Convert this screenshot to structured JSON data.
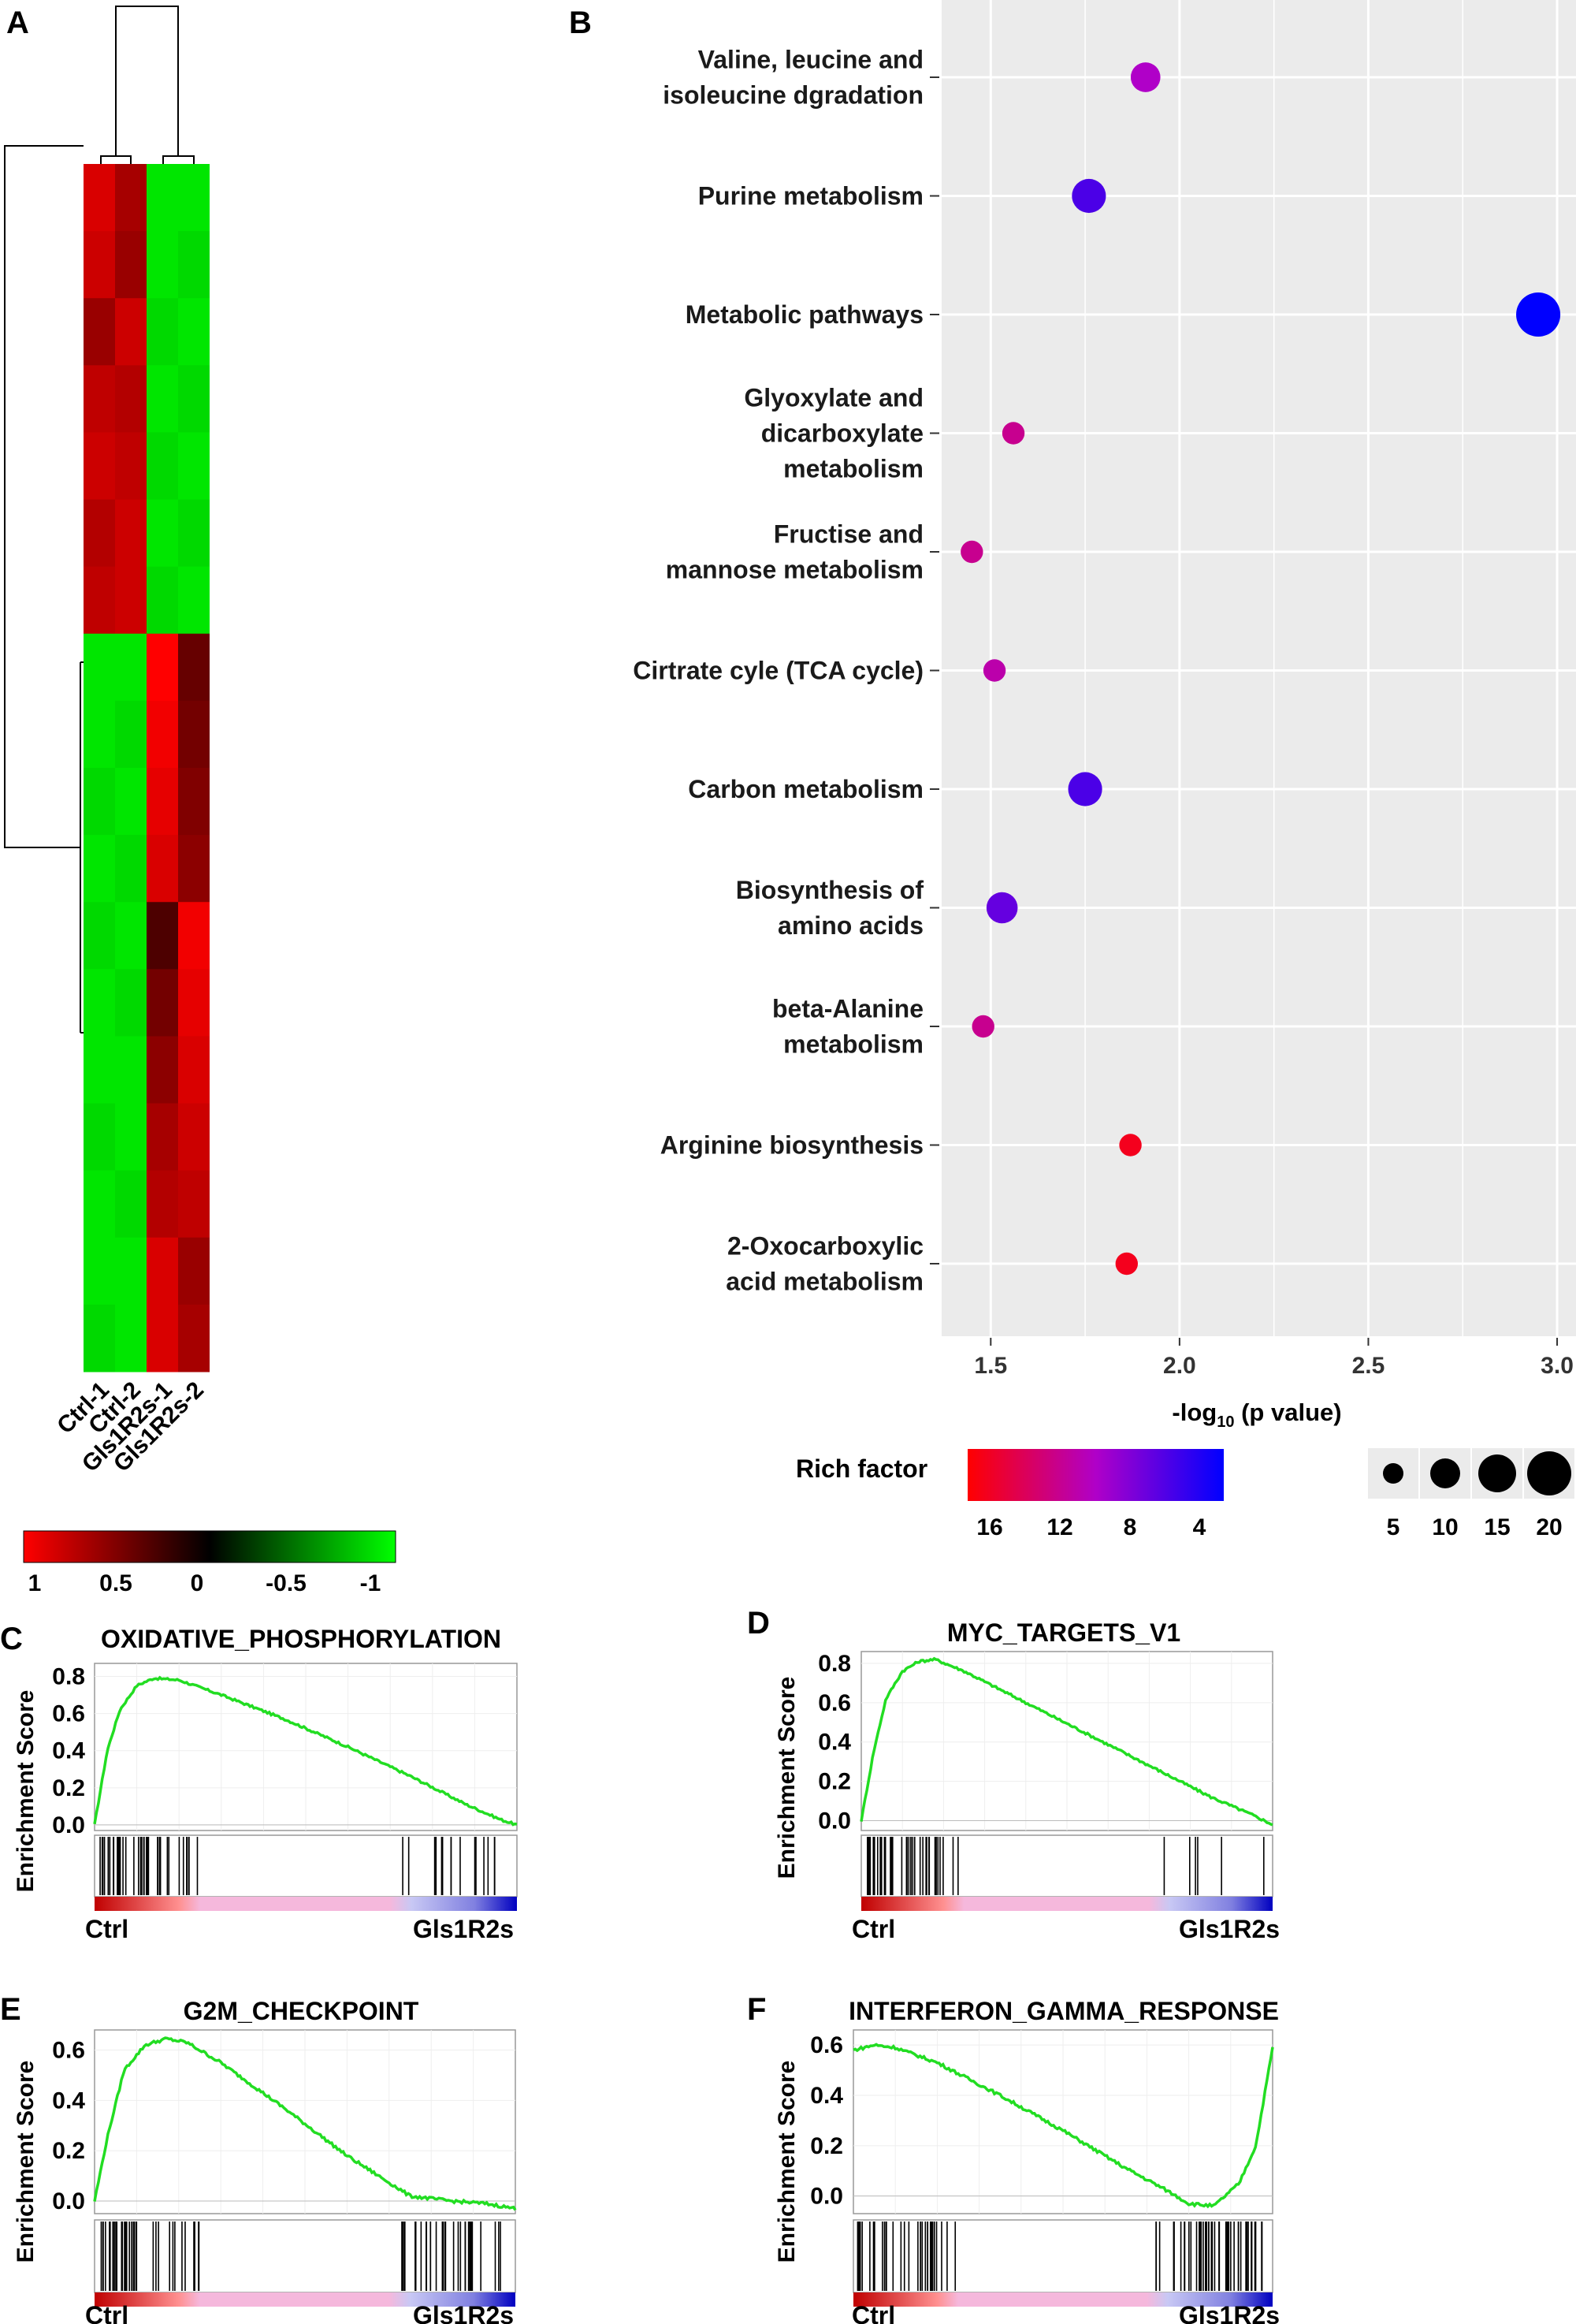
{
  "panel_labels": {
    "A": "A",
    "B": "B",
    "C": "C",
    "D": "D",
    "E": "E",
    "F": "F"
  },
  "heatmap": {
    "samples": [
      "Ctrl-1",
      "Ctrl-2",
      "Gls1R2s-1",
      "Gls1R2s-2"
    ],
    "colorbar_ticks": [
      "1",
      "0.5",
      "0",
      "-0.5",
      "-1"
    ],
    "colors": {
      "high": "#ff0000",
      "mid": "#000000",
      "low": "#00ff00"
    }
  },
  "bubble": {
    "legend_color_title": "Rich factor",
    "legend_color_ticks": [
      "16",
      "12",
      "8",
      "4"
    ],
    "legend_size_ticks": [
      "5",
      "10",
      "15",
      "20"
    ],
    "x_axis_title_parts": {
      "pre": "-log",
      "sub": "10",
      "post": " (p value)"
    },
    "x_ticks": [
      "1.5",
      "2.0",
      "2.5",
      "3.0"
    ]
  },
  "gsea_common": {
    "ylabel": "Enrichment Score",
    "left_label": "Ctrl",
    "right_label": "Gls1R2s"
  },
  "chart_data": [
    {
      "type": "heatmap",
      "title": "",
      "columns": [
        "Ctrl-1",
        "Ctrl-2",
        "Gls1R2s-1",
        "Gls1R2s-2"
      ],
      "scale": [
        -1,
        1
      ],
      "values": [
        [
          0.85,
          0.65,
          -0.9,
          -0.9
        ],
        [
          0.8,
          0.6,
          -0.9,
          -0.85
        ],
        [
          0.6,
          0.8,
          -0.85,
          -0.9
        ],
        [
          0.75,
          0.7,
          -0.9,
          -0.85
        ],
        [
          0.8,
          0.75,
          -0.85,
          -0.9
        ],
        [
          0.7,
          0.8,
          -0.9,
          -0.85
        ],
        [
          0.75,
          0.8,
          -0.85,
          -0.9
        ],
        [
          -0.9,
          -0.9,
          1.0,
          0.4
        ],
        [
          -0.9,
          -0.85,
          0.95,
          0.45
        ],
        [
          -0.85,
          -0.9,
          0.9,
          0.5
        ],
        [
          -0.9,
          -0.85,
          0.85,
          0.55
        ],
        [
          -0.85,
          -0.9,
          0.3,
          0.95
        ],
        [
          -0.9,
          -0.85,
          0.45,
          0.9
        ],
        [
          -0.9,
          -0.9,
          0.55,
          0.85
        ],
        [
          -0.85,
          -0.9,
          0.65,
          0.8
        ],
        [
          -0.9,
          -0.85,
          0.7,
          0.75
        ],
        [
          -0.9,
          -0.9,
          0.85,
          0.6
        ],
        [
          -0.85,
          -0.9,
          0.85,
          0.65
        ]
      ]
    },
    {
      "type": "scatter",
      "title": "",
      "xlabel": "-log10 (p value)",
      "ylabel": "",
      "xlim": [
        1.37,
        3.05
      ],
      "size_legend": "count",
      "color_legend": "Rich factor",
      "points": [
        {
          "pathway": "Valine, leucine and isoleucine dgradation",
          "x": 1.91,
          "size": 8,
          "rich_factor": 10
        },
        {
          "pathway": "Purine metabolism",
          "x": 1.76,
          "size": 11,
          "rich_factor": 6
        },
        {
          "pathway": "Metabolic pathways",
          "x": 2.95,
          "size": 20,
          "rich_factor": 3
        },
        {
          "pathway": "Glyoxylate and dicarboxylate metabolism",
          "x": 1.56,
          "size": 4,
          "rich_factor": 12
        },
        {
          "pathway": "Fructise and mannose metabolism",
          "x": 1.45,
          "size": 4,
          "rich_factor": 12
        },
        {
          "pathway": "Cirtrate cyle (TCA cycle)",
          "x": 1.51,
          "size": 4,
          "rich_factor": 11
        },
        {
          "pathway": "Carbon metabolism",
          "x": 1.75,
          "size": 11,
          "rich_factor": 6
        },
        {
          "pathway": "Biosynthesis of amino acids",
          "x": 1.53,
          "size": 9,
          "rich_factor": 7
        },
        {
          "pathway": "beta-Alanine metabolism",
          "x": 1.48,
          "size": 4,
          "rich_factor": 12
        },
        {
          "pathway": "Arginine biosynthesis",
          "x": 1.87,
          "size": 4,
          "rich_factor": 16
        },
        {
          "pathway": "2-Oxocarboxylic acid metabolism",
          "x": 1.86,
          "size": 4,
          "rich_factor": 16
        }
      ]
    },
    {
      "type": "line",
      "title": "OXIDATIVE_PHOSPHORYLATION",
      "ylabel": "Enrichment Score",
      "y_ticks": [
        0.0,
        0.2,
        0.4,
        0.6,
        0.8
      ],
      "ylim": [
        -0.03,
        0.87
      ],
      "x": [
        0,
        0.03,
        0.06,
        0.1,
        0.14,
        0.2,
        0.3,
        0.45,
        0.6,
        0.75,
        0.88,
        0.96,
        1.0
      ],
      "y": [
        0,
        0.4,
        0.62,
        0.75,
        0.79,
        0.78,
        0.7,
        0.57,
        0.42,
        0.26,
        0.11,
        0.03,
        0
      ],
      "hits_left": 40,
      "hits_right": 16
    },
    {
      "type": "line",
      "title": "MYC_TARGETS_V1",
      "ylabel": "Enrichment Score",
      "y_ticks": [
        0.0,
        0.2,
        0.4,
        0.6,
        0.8
      ],
      "ylim": [
        -0.05,
        0.86
      ],
      "x": [
        0,
        0.03,
        0.06,
        0.1,
        0.14,
        0.18,
        0.25,
        0.4,
        0.55,
        0.7,
        0.85,
        0.95,
        1.0
      ],
      "y": [
        0,
        0.35,
        0.62,
        0.76,
        0.81,
        0.82,
        0.76,
        0.6,
        0.44,
        0.28,
        0.12,
        0.03,
        -0.02
      ],
      "hits_left": 44,
      "hits_right": 6
    },
    {
      "type": "line",
      "title": "G2M_CHECKPOINT",
      "ylabel": "Enrichment Score",
      "y_ticks": [
        0.0,
        0.2,
        0.4,
        0.6
      ],
      "ylim": [
        -0.05,
        0.68
      ],
      "x": [
        0,
        0.03,
        0.07,
        0.12,
        0.17,
        0.22,
        0.3,
        0.45,
        0.6,
        0.75,
        0.85,
        0.93,
        1.0
      ],
      "y": [
        0,
        0.25,
        0.52,
        0.62,
        0.645,
        0.63,
        0.55,
        0.37,
        0.18,
        0.02,
        0.0,
        -0.01,
        -0.03
      ],
      "hits_left": 36,
      "hits_right": 30
    },
    {
      "type": "line",
      "title": "INTERFERON_GAMMA_RESPONSE",
      "ylabel": "Enrichment Score",
      "y_ticks": [
        0.0,
        0.2,
        0.4,
        0.6
      ],
      "ylim": [
        -0.07,
        0.66
      ],
      "x": [
        0,
        0.05,
        0.1,
        0.2,
        0.35,
        0.5,
        0.65,
        0.75,
        0.8,
        0.86,
        0.92,
        0.96,
        1.0
      ],
      "y": [
        0.58,
        0.6,
        0.59,
        0.53,
        0.4,
        0.26,
        0.11,
        0.02,
        -0.03,
        -0.04,
        0.05,
        0.2,
        0.59
      ],
      "hits_left": 36,
      "hits_right": 45
    }
  ]
}
